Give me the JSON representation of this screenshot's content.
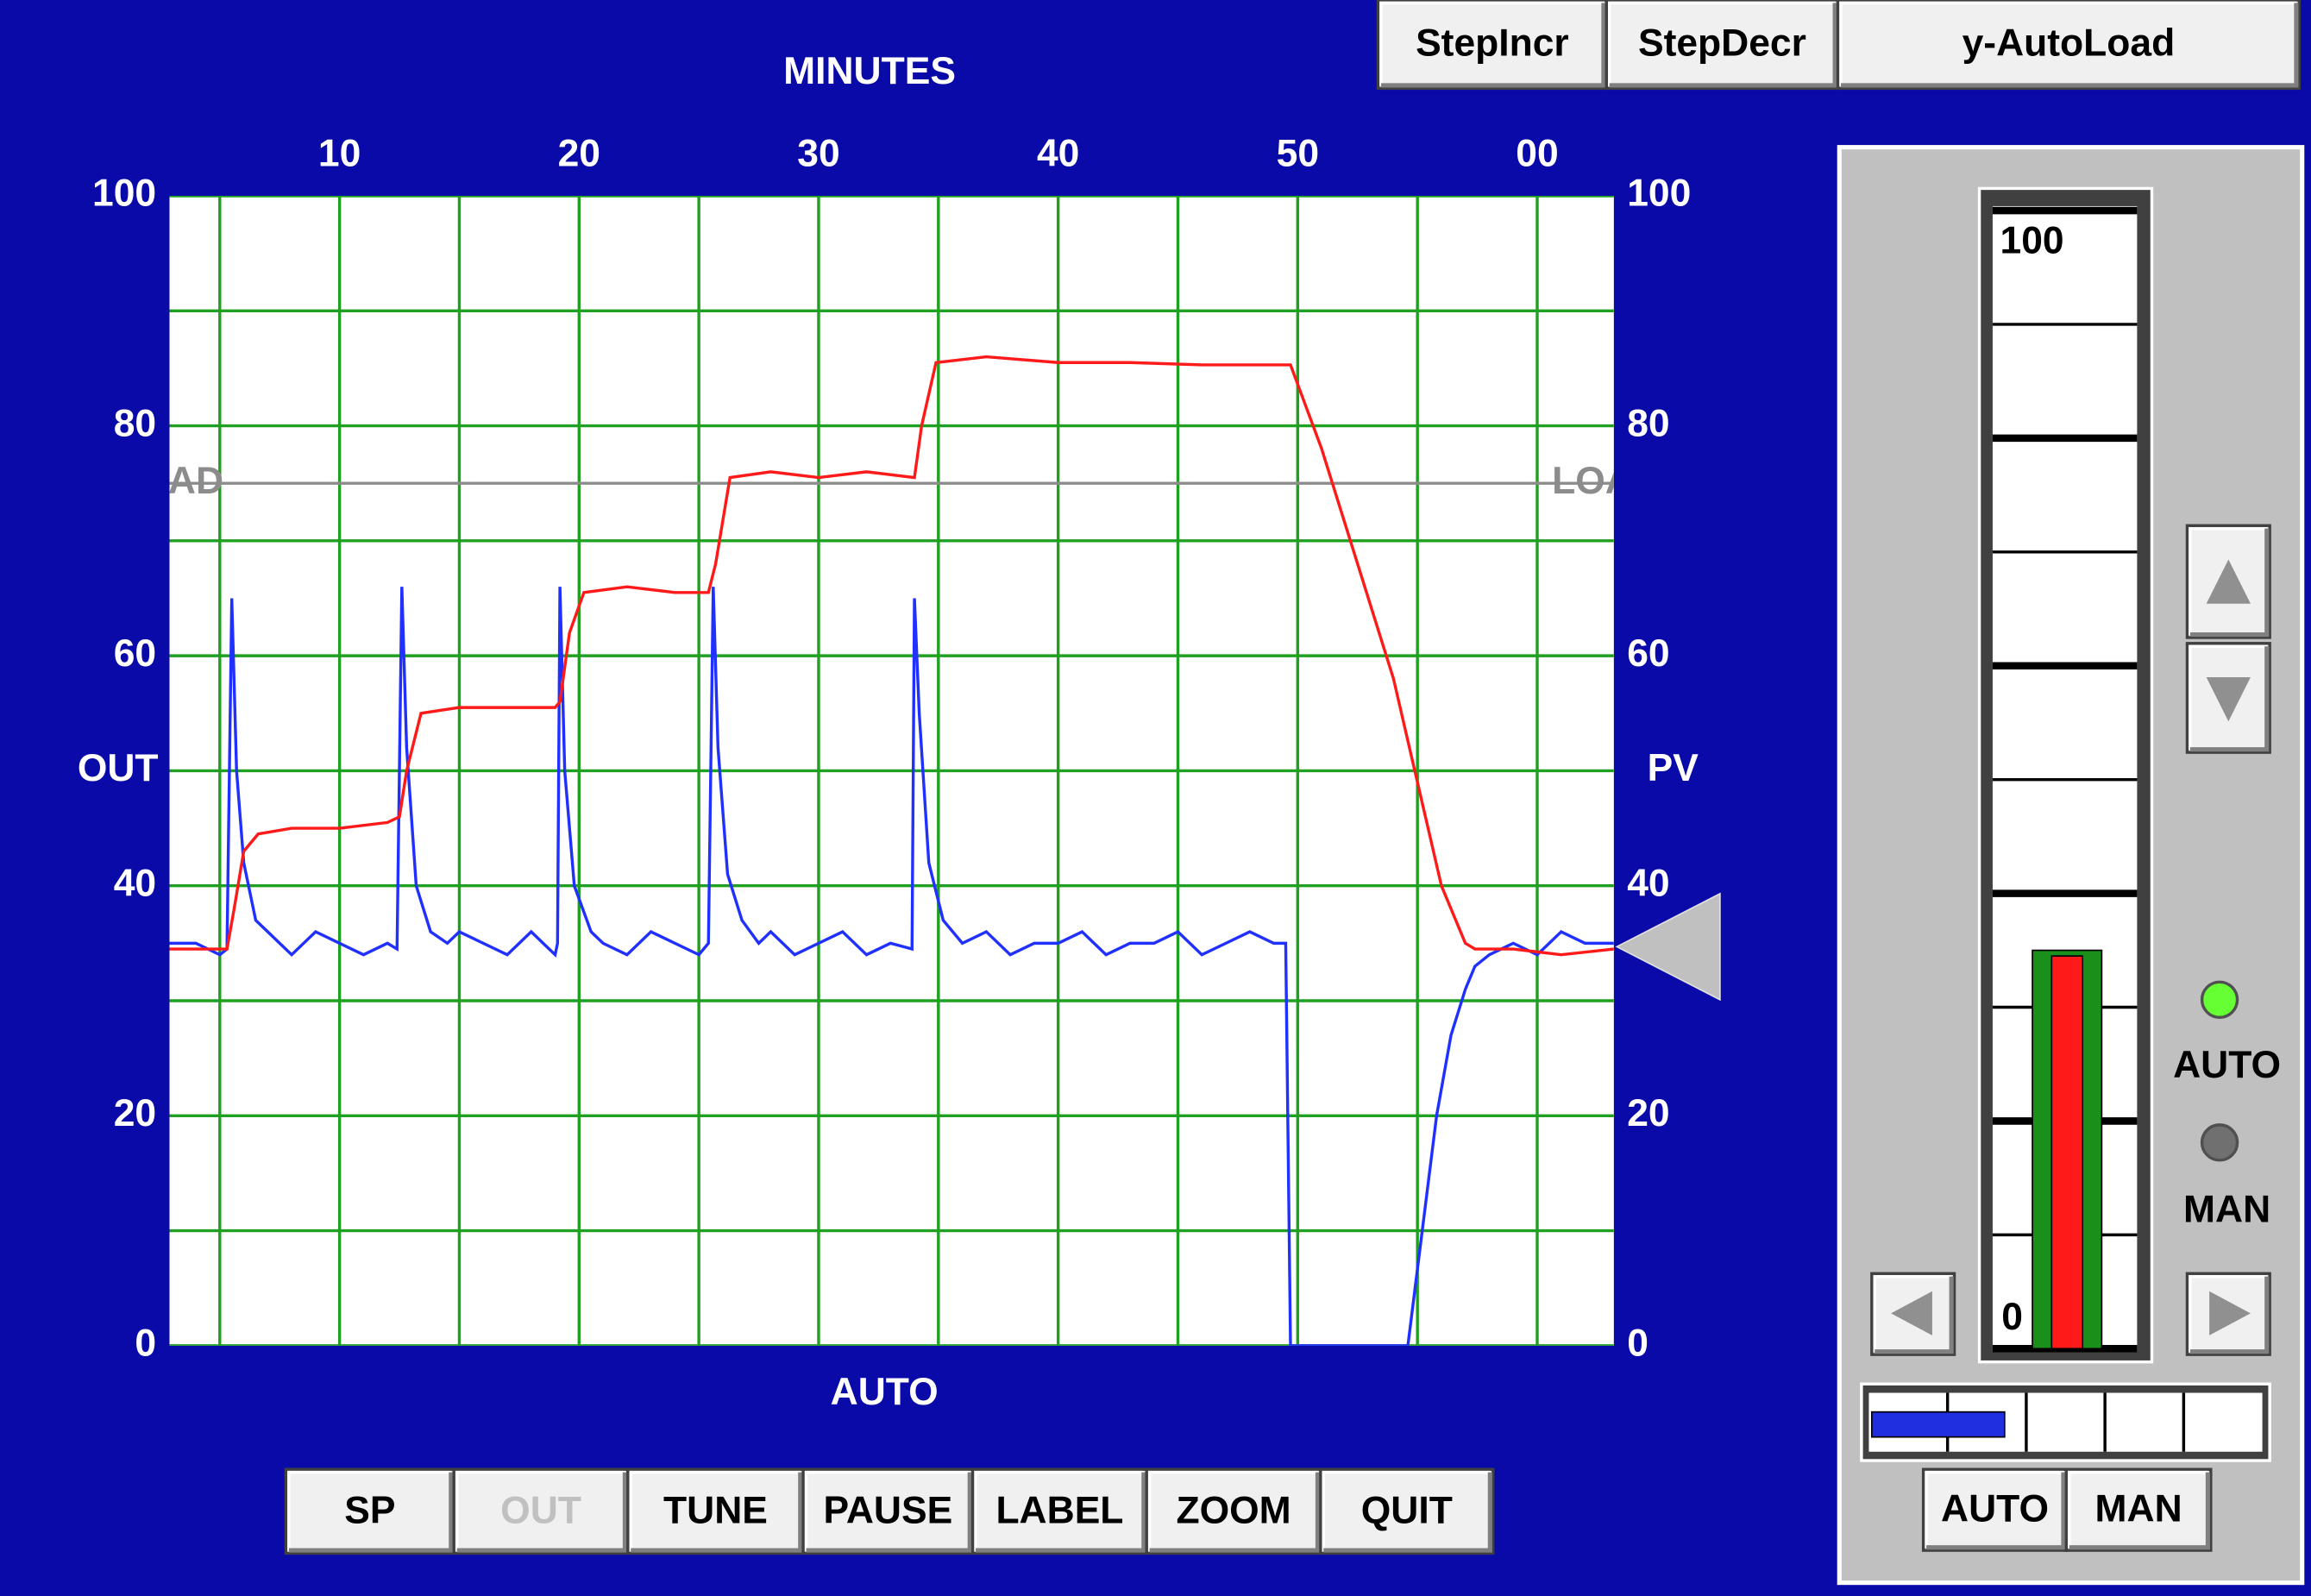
{
  "top_buttons": [
    "StepIncr",
    "StepDecr",
    "y-AutoLoad"
  ],
  "chart_data": {
    "type": "line",
    "x_title": "MINUTES",
    "status": "AUTO",
    "y_title": "OUT",
    "y2_title": "PV",
    "xlim": [
      2.9,
      63.2
    ],
    "xticks": [
      10,
      20,
      30,
      40,
      50,
      {
        "value": 60,
        "label": "00"
      }
    ],
    "x_minor_grid": [
      5,
      15,
      25,
      35,
      45,
      55
    ],
    "ylim": [
      0,
      100
    ],
    "yticks": [
      0,
      20,
      40,
      60,
      80,
      100
    ],
    "y2lim": [
      0,
      100
    ],
    "y2ticks": [
      0,
      20,
      40,
      60,
      80,
      100
    ],
    "y_minor_grid": [
      10,
      30,
      50,
      70,
      90
    ],
    "grid": true,
    "grid_color": "#20a020",
    "load_line": {
      "value": 75,
      "label": "LOAD",
      "color": "#8c8c8c"
    },
    "marker_value": 34.7,
    "series": [
      {
        "color": "#2030ff",
        "x": [
          2.9,
          4,
          5,
          5.3,
          5.5,
          5.7,
          6,
          6.5,
          7,
          7.5,
          8,
          9,
          10,
          11,
          12,
          12.4,
          12.6,
          12.8,
          13.2,
          13.8,
          14.5,
          15,
          16,
          17,
          18,
          19,
          19.1,
          19.2,
          19.4,
          19.8,
          20.5,
          21,
          22,
          23,
          24,
          25,
          25.4,
          25.6,
          25.8,
          26.2,
          26.8,
          27.5,
          28,
          29,
          30,
          31,
          32,
          33,
          33.9,
          34,
          34.2,
          34.6,
          35.2,
          36,
          37,
          38,
          39,
          40,
          41,
          42,
          43,
          44,
          45,
          46,
          47,
          48,
          49,
          49.5,
          49.7,
          52,
          54.6,
          55.2,
          55.8,
          56.4,
          57,
          57.4,
          58,
          59,
          60,
          61,
          62,
          63.2
        ],
        "values": [
          35,
          35,
          34,
          34.5,
          65,
          50,
          42,
          37,
          36,
          35,
          34,
          36,
          35,
          34,
          35,
          34.5,
          66,
          52,
          40,
          36,
          35,
          36,
          35,
          34,
          36,
          34,
          35,
          66,
          50,
          40,
          36,
          35,
          34,
          36,
          35,
          34,
          35,
          66,
          52,
          41,
          37,
          35,
          36,
          34,
          35,
          36,
          34,
          35,
          34.5,
          65,
          55,
          42,
          37,
          35,
          36,
          34,
          35,
          35,
          36,
          34,
          35,
          35,
          36,
          34,
          35,
          36,
          35,
          35,
          0,
          0,
          0,
          10,
          20,
          27,
          31,
          33,
          34,
          35,
          34,
          36,
          35,
          35
        ]
      },
      {
        "color": "#ff1a1a",
        "axis": "y2",
        "x": [
          2.9,
          5.3,
          5.6,
          6,
          6.6,
          8,
          10,
          12,
          12.5,
          12.8,
          13.4,
          15,
          17,
          19,
          19.2,
          19.6,
          20.2,
          22,
          24,
          25.4,
          25.7,
          26.3,
          28,
          30,
          32,
          34,
          34.3,
          34.9,
          37,
          40,
          43,
          46,
          49.7,
          51,
          52.5,
          54,
          55,
          56,
          57,
          57.4,
          59,
          61,
          63.2
        ],
        "values": [
          34.5,
          34.5,
          38,
          43,
          44.5,
          45,
          45,
          45.5,
          46,
          50,
          55,
          55.5,
          55.5,
          55.5,
          56,
          62,
          65.5,
          66,
          65.5,
          65.5,
          68,
          75.5,
          76,
          75.5,
          76,
          75.5,
          80,
          85.5,
          86,
          85.5,
          85.5,
          85.3,
          85.3,
          78,
          68,
          58,
          49,
          40,
          35,
          34.5,
          34.5,
          34,
          34.5
        ]
      }
    ]
  },
  "bottom_buttons": [
    {
      "label": "SP",
      "enabled": true
    },
    {
      "label": "OUT",
      "enabled": false
    },
    {
      "label": "TUNE",
      "enabled": true
    },
    {
      "label": "PAUSE",
      "enabled": true
    },
    {
      "label": "LABEL",
      "enabled": true
    },
    {
      "label": "ZOOM",
      "enabled": true
    },
    {
      "label": "QUIT",
      "enabled": true
    }
  ],
  "gauge": {
    "ylim": [
      0,
      100
    ],
    "top_label": 100,
    "bottom_label": 0,
    "bars": [
      {
        "color": "#1a8f1a",
        "value": 35
      },
      {
        "color": "#ff1a1a",
        "value": 34.5
      }
    ]
  },
  "indicators": [
    {
      "label": "AUTO",
      "color": "#66ff33"
    },
    {
      "label": "MAN",
      "color": "#707070"
    }
  ],
  "h_bar": {
    "xlim": [
      0,
      100
    ],
    "value": 34.5,
    "color": "#2030e0"
  },
  "mode_buttons": [
    "AUTO",
    "MAN"
  ]
}
